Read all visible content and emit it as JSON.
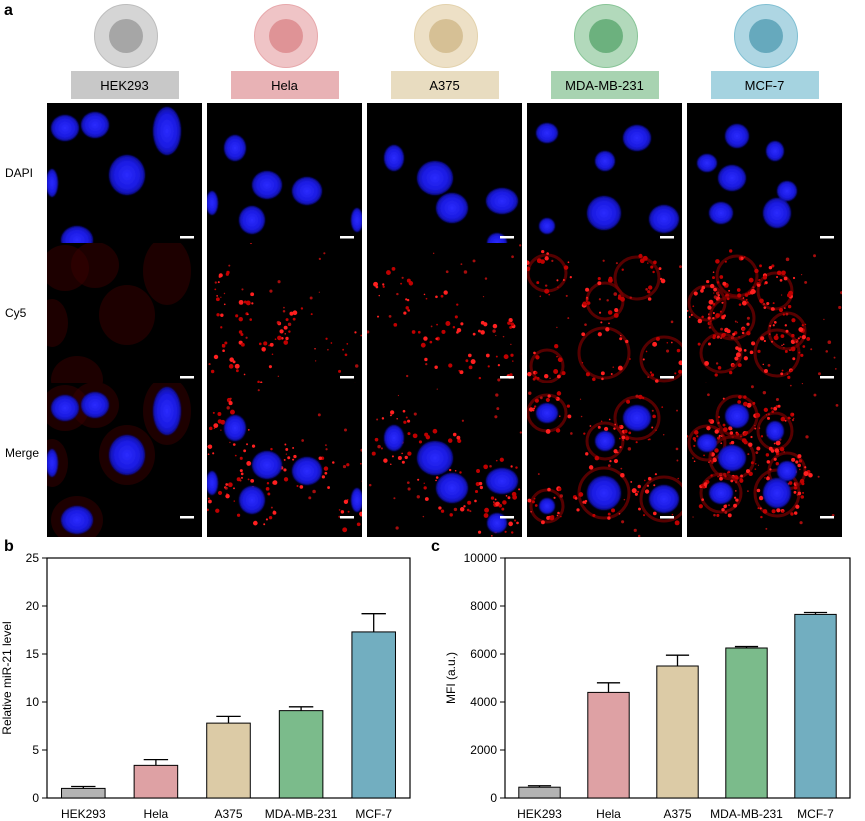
{
  "panel_letters": {
    "a": "a",
    "b": "b",
    "c": "c"
  },
  "cell_lines": [
    {
      "name": "HEK293",
      "color": "#bdbdbd",
      "ring": "#d5d5d5",
      "nucleus": "#a6a6a6",
      "label_bg": "#c8c8c8"
    },
    {
      "name": "Hela",
      "color": "#e7a8ab",
      "ring": "#efc4c6",
      "nucleus": "#df9396",
      "label_bg": "#e8b2b5"
    },
    {
      "name": "A375",
      "color": "#e3d2ad",
      "ring": "#ede0c6",
      "nucleus": "#d6c095",
      "label_bg": "#e8dcc0"
    },
    {
      "name": "MDA-MB-231",
      "color": "#88c497",
      "ring": "#b2d9bb",
      "nucleus": "#6cb17e",
      "label_bg": "#a8d3b1"
    },
    {
      "name": "MCF-7",
      "color": "#80bfd2",
      "ring": "#aed6e3",
      "nucleus": "#66a9bd",
      "label_bg": "#a5d3e0"
    }
  ],
  "row_labels": [
    "DAPI",
    "Cy5",
    "Merge"
  ],
  "chart_data": [
    {
      "type": "bar",
      "panel": "b",
      "categories": [
        "HEK293",
        "Hela",
        "A375",
        "MDA-MB-231",
        "MCF-7"
      ],
      "values": [
        1.0,
        3.4,
        7.8,
        9.1,
        17.3
      ],
      "errors": [
        0.2,
        0.6,
        0.7,
        0.4,
        1.9
      ],
      "colors": [
        "#b3b3b3",
        "#dea1a4",
        "#dccba6",
        "#7bbb8b",
        "#72aec0"
      ],
      "xlabel": "",
      "ylabel": "Relative miR-21 level",
      "ylim": [
        0,
        25
      ],
      "yticks": [
        0,
        5,
        10,
        15,
        20,
        25
      ]
    },
    {
      "type": "bar",
      "panel": "c",
      "categories": [
        "HEK293",
        "Hela",
        "A375",
        "MDA-MB-231",
        "MCF-7"
      ],
      "values": [
        450,
        4400,
        5500,
        6250,
        7650
      ],
      "errors": [
        60,
        400,
        450,
        60,
        80
      ],
      "colors": [
        "#b3b3b3",
        "#dea1a4",
        "#dccba6",
        "#7bbb8b",
        "#72aec0"
      ],
      "xlabel": "",
      "ylabel": "MFI (a.u.)",
      "ylim": [
        0,
        10000
      ],
      "yticks": [
        0,
        2000,
        4000,
        6000,
        8000,
        10000
      ]
    }
  ]
}
